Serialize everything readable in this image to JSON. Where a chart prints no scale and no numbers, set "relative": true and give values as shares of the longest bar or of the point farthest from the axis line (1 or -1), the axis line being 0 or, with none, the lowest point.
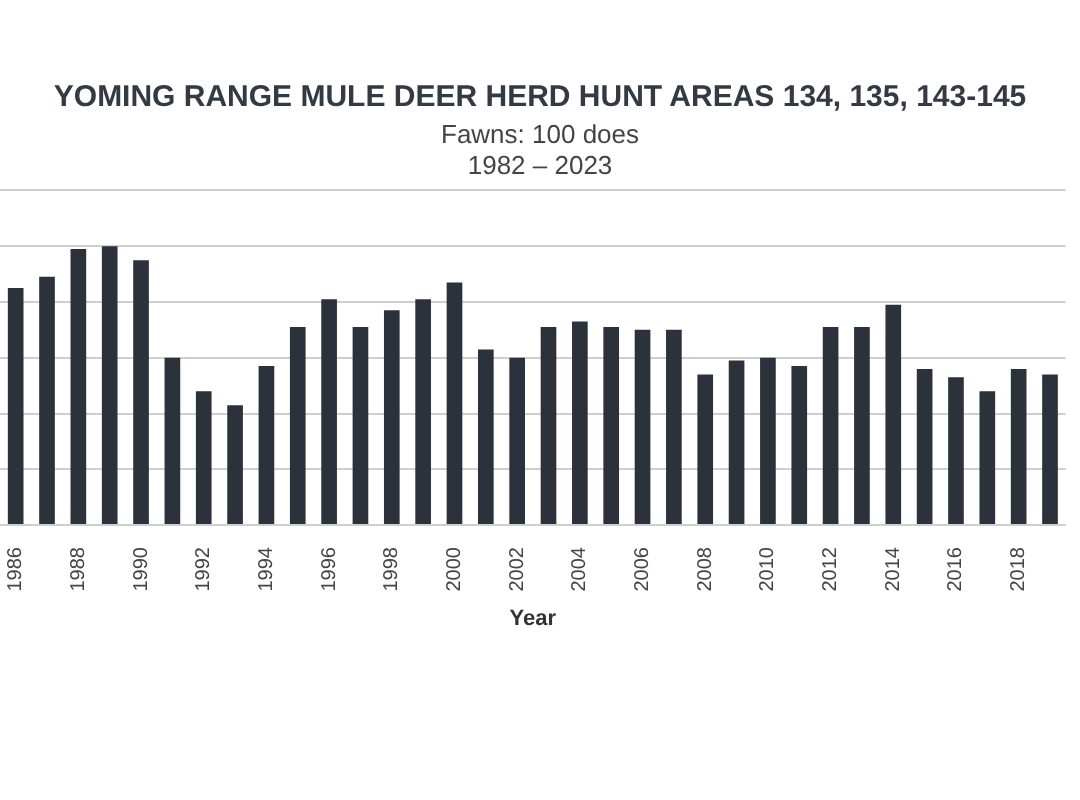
{
  "chart_data": {
    "type": "bar",
    "title": "YOMING RANGE MULE DEER HERD HUNT AREAS 134, 135, 143-145",
    "subtitle": "Fawns: 100 does\n1982 – 2023",
    "xlabel": "Year",
    "relative": true,
    "grid": "y",
    "color": "#2b323c",
    "categories": [
      "1986",
      null,
      "1988",
      null,
      "1990",
      null,
      "1992",
      null,
      "1994",
      null,
      "1996",
      null,
      "1998",
      null,
      "2000",
      null,
      "2002",
      null,
      "2004",
      null,
      "2006",
      null,
      "2008",
      null,
      "2010",
      null,
      "2012",
      null,
      "2014",
      null,
      "2016",
      null,
      "2018",
      null
    ],
    "values": [
      0.85,
      0.89,
      0.99,
      1,
      0.95,
      0.6,
      0.48,
      0.43,
      0.57,
      0.71,
      0.81,
      0.71,
      0.77,
      0.81,
      0.87,
      0.63,
      0.6,
      0.71,
      0.73,
      0.71,
      0.7,
      0.7,
      0.54,
      0.59,
      0.6,
      0.57,
      0.71,
      0.71,
      0.79,
      0.56,
      0.53,
      0.48,
      0.56,
      0.54
    ]
  }
}
